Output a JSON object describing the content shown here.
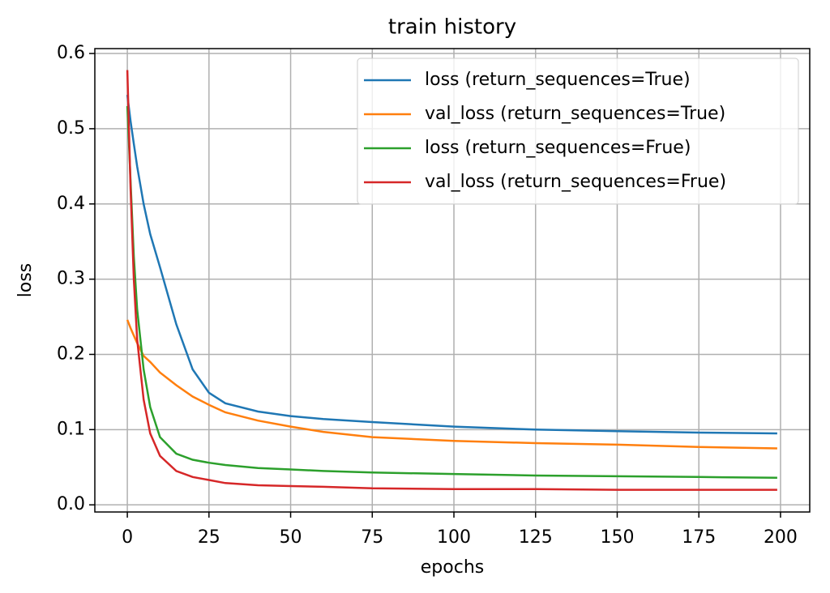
{
  "chart_data": {
    "type": "line",
    "title": "train history",
    "x_label": "epochs",
    "y_label": "loss",
    "x": [
      0,
      1,
      2,
      3,
      5,
      7,
      10,
      15,
      20,
      25,
      30,
      40,
      50,
      60,
      75,
      100,
      125,
      150,
      175,
      199
    ],
    "series": [
      {
        "name": "loss (return_sequences=True)",
        "color": "#1f77b4",
        "values": [
          0.545,
          0.51,
          0.48,
          0.45,
          0.4,
          0.36,
          0.316,
          0.24,
          0.18,
          0.149,
          0.135,
          0.124,
          0.118,
          0.114,
          0.11,
          0.104,
          0.1,
          0.098,
          0.096,
          0.095
        ]
      },
      {
        "name": "val_loss (return_sequences=True)",
        "color": "#ff7f0e",
        "values": [
          0.246,
          0.235,
          0.225,
          0.215,
          0.198,
          0.19,
          0.176,
          0.159,
          0.144,
          0.133,
          0.123,
          0.112,
          0.104,
          0.097,
          0.09,
          0.085,
          0.082,
          0.08,
          0.077,
          0.075
        ]
      },
      {
        "name": "loss (return_sequences=Frue)",
        "color": "#2ca02c",
        "values": [
          0.53,
          0.43,
          0.33,
          0.26,
          0.18,
          0.13,
          0.09,
          0.068,
          0.06,
          0.056,
          0.053,
          0.049,
          0.047,
          0.045,
          0.043,
          0.041,
          0.039,
          0.038,
          0.037,
          0.036
        ]
      },
      {
        "name": "val_loss (return_sequences=Frue)",
        "color": "#d62728",
        "values": [
          0.578,
          0.42,
          0.3,
          0.22,
          0.14,
          0.095,
          0.065,
          0.045,
          0.037,
          0.033,
          0.029,
          0.026,
          0.025,
          0.024,
          0.022,
          0.021,
          0.021,
          0.02,
          0.02,
          0.02
        ]
      }
    ],
    "xlim": [
      -9.95,
      208.95
    ],
    "xticks": [
      0,
      25,
      50,
      75,
      100,
      125,
      150,
      175,
      200
    ],
    "ylim": [
      -0.0095,
      0.6065
    ],
    "yticks": [
      {
        "value": 0,
        "label": "0.0"
      },
      0.1,
      0.2,
      0.3,
      0.4,
      0.5,
      0.6
    ],
    "grid": true,
    "legend": "upper right"
  }
}
